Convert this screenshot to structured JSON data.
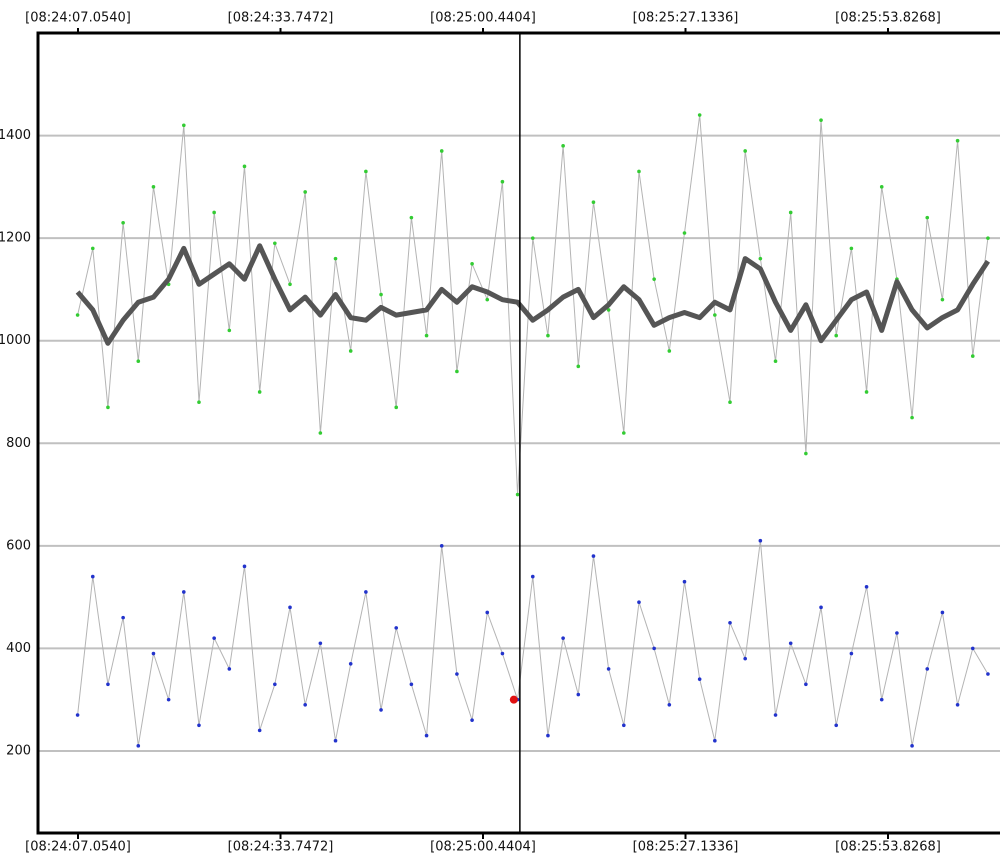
{
  "chart_data": {
    "type": "line",
    "x": [
      30247,
      30249,
      30251,
      30253,
      30255,
      30257,
      30259,
      30261,
      30263,
      30265,
      30267,
      30269,
      30271,
      30273,
      30275,
      30277,
      30279,
      30281,
      30283,
      30285,
      30287,
      30289,
      30291,
      30293,
      30295,
      30297,
      30299,
      30301,
      30303,
      30305,
      30307,
      30309,
      30311,
      30313,
      30315,
      30317,
      30319,
      30321,
      30323,
      30325,
      30327,
      30329,
      30331,
      30333,
      30335,
      30337,
      30339,
      30341,
      30343,
      30345,
      30347,
      30349,
      30351,
      30353,
      30355,
      30357,
      30359,
      30361,
      30363,
      30365,
      30367
    ],
    "series": [
      {
        "color": "#33cc33",
        "line_color": "#b4b4b4",
        "marker": true,
        "values": [
          1050,
          1180,
          870,
          1230,
          960,
          1300,
          1110,
          1420,
          880,
          1250,
          1020,
          1340,
          900,
          1190,
          1110,
          1290,
          820,
          1160,
          980,
          1330,
          1090,
          870,
          1240,
          1010,
          1370,
          940,
          1150,
          1080,
          1310,
          700,
          1200,
          1010,
          1380,
          950,
          1270,
          1060,
          820,
          1330,
          1120,
          980,
          1210,
          1440,
          1050,
          880,
          1370,
          1160,
          960,
          1250,
          780,
          1430,
          1010,
          1180,
          900,
          1300,
          1120,
          850,
          1240,
          1080,
          1390,
          970,
          1200
        ]
      },
      {
        "color": "#2233cc",
        "line_color": "#b4b4b4",
        "marker": true,
        "values": [
          270,
          540,
          330,
          460,
          210,
          390,
          300,
          510,
          250,
          420,
          360,
          560,
          240,
          330,
          480,
          290,
          410,
          220,
          370,
          510,
          280,
          440,
          330,
          230,
          600,
          350,
          260,
          470,
          390,
          300,
          540,
          230,
          420,
          310,
          580,
          360,
          250,
          490,
          400,
          290,
          530,
          340,
          220,
          450,
          380,
          610,
          270,
          410,
          330,
          480,
          250,
          390,
          520,
          300,
          430,
          210,
          360,
          470,
          290,
          400,
          350
        ]
      },
      {
        "color": "#555555",
        "line_color": "#555555",
        "marker": false,
        "values": [
          1095,
          1060,
          995,
          1040,
          1075,
          1085,
          1120,
          1180,
          1110,
          1130,
          1150,
          1120,
          1185,
          1120,
          1060,
          1085,
          1050,
          1090,
          1045,
          1040,
          1065,
          1050,
          1055,
          1060,
          1100,
          1075,
          1105,
          1095,
          1080,
          1075,
          1040,
          1060,
          1085,
          1100,
          1045,
          1070,
          1105,
          1080,
          1030,
          1045,
          1055,
          1045,
          1075,
          1060,
          1160,
          1140,
          1075,
          1020,
          1070,
          1000,
          1040,
          1080,
          1095,
          1020,
          1115,
          1060,
          1025,
          1045,
          1060,
          1110,
          1155
        ]
      }
    ],
    "cursor_x": 30305.3,
    "highlight": {
      "x": 30304.5,
      "y": 300,
      "color": "#e01010"
    },
    "xlim": [
      30241.78,
      30368.59
    ],
    "xticks": [
      {
        "value": 30247.054,
        "label": "[08:24:07.0540]"
      },
      {
        "value": 30273.7472,
        "label": "[08:24:33.7472]"
      },
      {
        "value": 30300.4404,
        "label": "[08:25:00.4404]"
      },
      {
        "value": 30327.1336,
        "label": "[08:25:27.1336]"
      },
      {
        "value": 30353.8268,
        "label": "[08:25:53.8268]"
      }
    ],
    "ylim": [
      40,
      1600
    ],
    "yticks": [
      200,
      400,
      600,
      800,
      1000,
      1200,
      1400
    ],
    "grid": true
  }
}
